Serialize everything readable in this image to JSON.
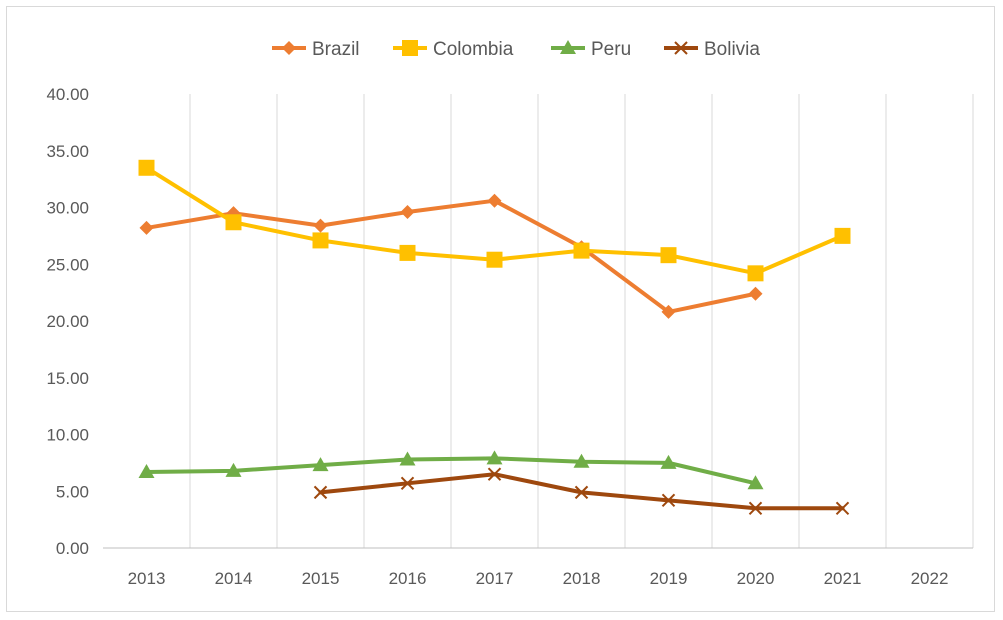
{
  "chart_data": {
    "type": "line",
    "title": "",
    "xlabel": "",
    "ylabel": "",
    "categories": [
      "2013",
      "2014",
      "2015",
      "2016",
      "2017",
      "2018",
      "2019",
      "2020",
      "2021",
      "2022"
    ],
    "ylim": [
      0,
      40
    ],
    "yticks": [
      "0.00",
      "5.00",
      "10.00",
      "15.00",
      "20.00",
      "25.00",
      "30.00",
      "35.00",
      "40.00"
    ],
    "grid": "vertical",
    "legend_position": "top",
    "series": [
      {
        "name": "Brazil",
        "marker": "diamond",
        "color": "#ED7D31",
        "values": [
          28.2,
          29.5,
          28.4,
          29.6,
          30.6,
          26.5,
          20.8,
          22.4,
          null,
          null
        ]
      },
      {
        "name": "Colombia",
        "marker": "square",
        "color": "#FFC000",
        "values": [
          33.5,
          28.7,
          27.1,
          26.0,
          25.4,
          26.2,
          25.8,
          24.2,
          27.5,
          null
        ]
      },
      {
        "name": "Peru",
        "marker": "triangle",
        "color": "#70AD47",
        "values": [
          6.7,
          6.8,
          7.3,
          7.8,
          7.9,
          7.6,
          7.5,
          5.7,
          null,
          null
        ]
      },
      {
        "name": "Bolivia",
        "marker": "x",
        "color": "#9E480E",
        "values": [
          null,
          null,
          4.9,
          5.7,
          6.5,
          4.9,
          4.2,
          3.5,
          3.5,
          null
        ]
      }
    ]
  }
}
